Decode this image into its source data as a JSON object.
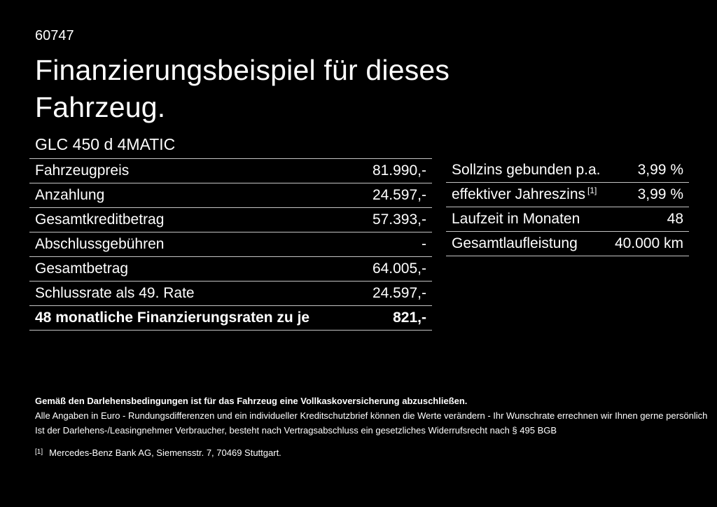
{
  "colors": {
    "background": "#000000",
    "text": "#ffffff",
    "divider": "#c4c4c4"
  },
  "page": {
    "code": "60747",
    "title_lines": [
      "Finanzierungsbeispiel für dieses",
      "Fahrzeug."
    ],
    "model": "GLC 450 d 4MATIC"
  },
  "financing_table": {
    "rows": [
      {
        "label": "Fahrzeugpreis",
        "value": "81.990,-",
        "bold": false
      },
      {
        "label": "Anzahlung",
        "value": "24.597,-",
        "bold": false
      },
      {
        "label": "Gesamtkreditbetrag",
        "value": "57.393,-",
        "bold": false
      },
      {
        "label": "Abschlussgebühren",
        "value": "-",
        "bold": false
      },
      {
        "label": "Gesamtbetrag",
        "value": "64.005,-",
        "bold": false
      },
      {
        "label": "Schlussrate als 49. Rate",
        "value": "24.597,-",
        "bold": false
      },
      {
        "label": "48 monatliche Finanzierungsraten zu je",
        "value": "821,-",
        "bold": true
      }
    ]
  },
  "conditions_table": {
    "rows": [
      {
        "label": "Sollzins gebunden p.a.",
        "value": "3,99 %"
      },
      {
        "label": "effektiver Jahreszins",
        "marker": "[1]",
        "value": "3,99 %"
      },
      {
        "label": "Laufzeit in Monaten",
        "value": "48"
      },
      {
        "label": "Gesamtlaufleistung",
        "value": "40.000 km"
      }
    ]
  },
  "legal": {
    "insurance_note": "Gemäß den Darlehensbedingungen ist für das Fahrzeug eine Vollkaskoversicherung abzuschließen.",
    "rounding_note": "Alle Angaben in Euro - Rundungsdifferenzen und ein individueller Kreditschutzbrief können die Werte verändern - Ihr Wunschrate errechnen wir Ihnen gerne persönlich",
    "withdrawal_note": "Ist der Darlehens-/Leasingnehmer Verbraucher, besteht nach Vertragsabschluss ein gesetzliches Widerrufsrecht nach § 495 BGB",
    "footnote": {
      "marker": "[1]",
      "text": "Mercedes-Benz Bank AG, Siemensstr. 7, 70469 Stuttgart."
    }
  }
}
